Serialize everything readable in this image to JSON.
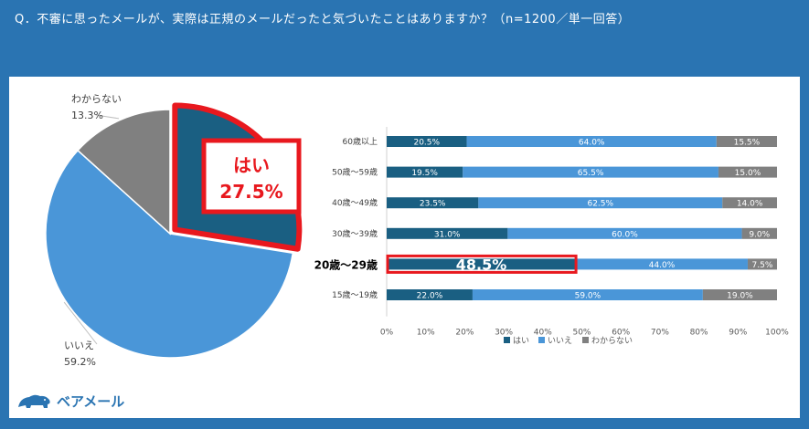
{
  "header": {
    "question": "Q．不審に思ったメールが、実際は正規のメールだったと気づいたことはありますか？（n=1200／単一回答）"
  },
  "colors": {
    "background": "#2a74b2",
    "yes": "#1a5f82",
    "no": "#4a96d8",
    "unknown": "#808080",
    "highlight": "#e8181e"
  },
  "logo": {
    "text": "ベアメール",
    "icon": "bear-icon"
  },
  "chart_data": [
    {
      "type": "pie",
      "slices": [
        {
          "label": "はい",
          "value": 27.5,
          "value_text": "27.5%"
        },
        {
          "label": "いいえ",
          "value": 59.2,
          "value_text": "59.2%"
        },
        {
          "label": "わからない",
          "value": 13.3,
          "value_text": "13.3%"
        }
      ]
    },
    {
      "type": "bar",
      "stacked": true,
      "orientation": "horizontal",
      "categories": [
        "60歳以上",
        "50歳～59歳",
        "40歳～49歳",
        "30歳～39歳",
        "20歳～29歳",
        "15歳～19歳"
      ],
      "series": [
        {
          "name": "はい",
          "values": [
            20.5,
            19.5,
            23.5,
            31.0,
            48.5,
            22.0
          ],
          "labels": [
            "20.5%",
            "19.5%",
            "23.5%",
            "31.0%",
            "48.5%",
            "22.0%"
          ]
        },
        {
          "name": "いいえ",
          "values": [
            64.0,
            65.5,
            62.5,
            60.0,
            44.0,
            59.0
          ],
          "labels": [
            "64.0%",
            "65.5%",
            "62.5%",
            "60.0%",
            "44.0%",
            "59.0%"
          ]
        },
        {
          "name": "わからない",
          "values": [
            15.5,
            15.0,
            14.0,
            9.0,
            7.5,
            19.0
          ],
          "labels": [
            "15.5%",
            "15.0%",
            "14.0%",
            "9.0%",
            "7.5%",
            "19.0%"
          ]
        }
      ],
      "xlim": [
        0,
        100
      ],
      "xticks": [
        "0%",
        "10%",
        "20%",
        "30%",
        "40%",
        "50%",
        "60%",
        "70%",
        "80%",
        "90%",
        "100%"
      ],
      "highlight_category": "20歳～29歳",
      "legend": "bottom"
    }
  ]
}
